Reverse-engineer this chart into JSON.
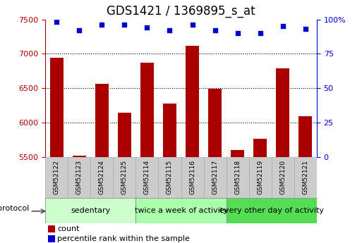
{
  "title": "GDS1421 / 1369895_s_at",
  "samples": [
    "GSM52122",
    "GSM52123",
    "GSM52124",
    "GSM52125",
    "GSM52114",
    "GSM52115",
    "GSM52116",
    "GSM52117",
    "GSM52118",
    "GSM52119",
    "GSM52120",
    "GSM52121"
  ],
  "counts": [
    6940,
    5520,
    6560,
    6140,
    6870,
    6280,
    7120,
    6490,
    5600,
    5760,
    6790,
    6090
  ],
  "percentile_ranks": [
    98,
    92,
    96,
    96,
    94,
    92,
    96,
    92,
    90,
    90,
    95,
    93
  ],
  "ylim_left": [
    5500,
    7500
  ],
  "ylim_right": [
    0,
    100
  ],
  "bar_color": "#aa0000",
  "dot_color": "#0000cc",
  "background_color": "#ffffff",
  "groups": [
    {
      "label": "sedentary",
      "start": 0,
      "end": 4,
      "color": "#ccffcc"
    },
    {
      "label": "twice a week of activity",
      "start": 4,
      "end": 8,
      "color": "#aaffaa"
    },
    {
      "label": "every other day of activity",
      "start": 8,
      "end": 12,
      "color": "#55dd55"
    }
  ],
  "protocol_label": "protocol",
  "legend_count_label": "count",
  "legend_pct_label": "percentile rank within the sample",
  "left_yticks": [
    5500,
    6000,
    6500,
    7000,
    7500
  ],
  "right_yticks": [
    0,
    25,
    50,
    75,
    100
  ],
  "grid_yticks": [
    6000,
    6500,
    7000
  ],
  "title_fontsize": 12,
  "tick_fontsize": 8,
  "group_fontsize": 8,
  "legend_fontsize": 8
}
